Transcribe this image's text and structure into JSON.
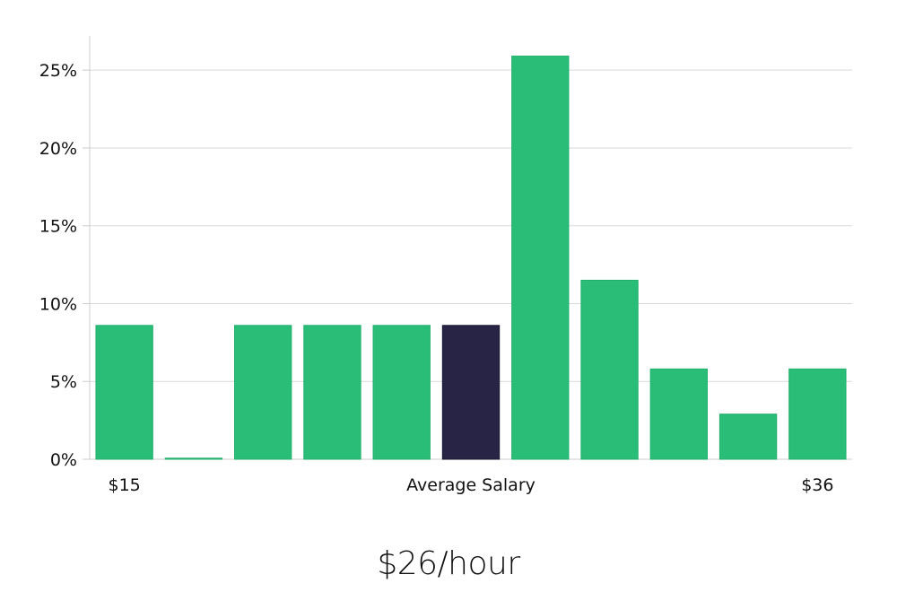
{
  "colors": {
    "bar": "#29bd77",
    "bar_highlight": "#272445",
    "grid": "#d9d9d9",
    "axis": "#cccccc",
    "text": "#111111"
  },
  "chart_data": {
    "type": "bar",
    "categories": [
      "",
      "",
      "",
      "",
      "",
      "",
      "",
      "",
      "",
      "",
      ""
    ],
    "values": [
      8.6,
      0,
      8.6,
      8.6,
      8.6,
      8.6,
      25.9,
      11.5,
      5.8,
      2.9,
      5.8
    ],
    "highlight_index": 5,
    "ylim": [
      0,
      27.2
    ],
    "yticks": [
      0,
      5,
      10,
      15,
      20,
      25
    ],
    "ytick_labels": [
      "0%",
      "5%",
      "10%",
      "15%",
      "20%",
      "25%"
    ],
    "x_min_label": "$15",
    "x_max_label": "$36",
    "xlabel": "Average Salary",
    "grid": true
  },
  "summary": {
    "value": "$26/hour"
  }
}
